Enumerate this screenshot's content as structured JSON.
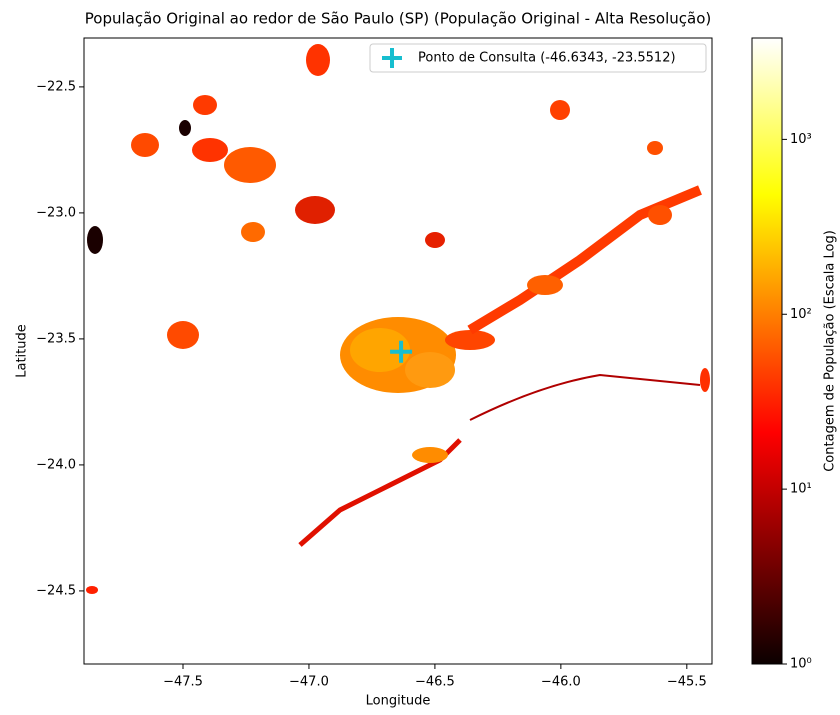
{
  "chart_data": {
    "type": "map",
    "title": "População Original ao redor de São Paulo (SP) (População Original - Alta Resolução)",
    "x_label": "Longitude",
    "y_label": "Latitude",
    "xlim": [
      -47.893,
      -45.4
    ],
    "ylim": [
      -24.79,
      -22.306
    ],
    "xticks": [
      -47.5,
      -47.0,
      -46.5,
      -46.0,
      -45.5
    ],
    "yticks": [
      -24.5,
      -24.0,
      -23.5,
      -23.0,
      -22.5
    ],
    "series": [
      {
        "name": "Ponto de Consulta (-46.6343, -23.5512)",
        "color": "#17becf",
        "x": [
          -46.6343
        ],
        "values": [
          -23.5512
        ]
      }
    ],
    "legend": "upper right",
    "colorbar": {
      "label": "Contagem de População (Escala Log)",
      "colormap": "hot",
      "log": true,
      "lim": [
        1,
        3800
      ],
      "ticks": [
        {
          "value": 1,
          "label": "10⁰"
        },
        {
          "value": 10,
          "label": "10¹"
        },
        {
          "value": 100,
          "label": "10²"
        },
        {
          "value": 1000,
          "label": "10³"
        }
      ]
    }
  }
}
